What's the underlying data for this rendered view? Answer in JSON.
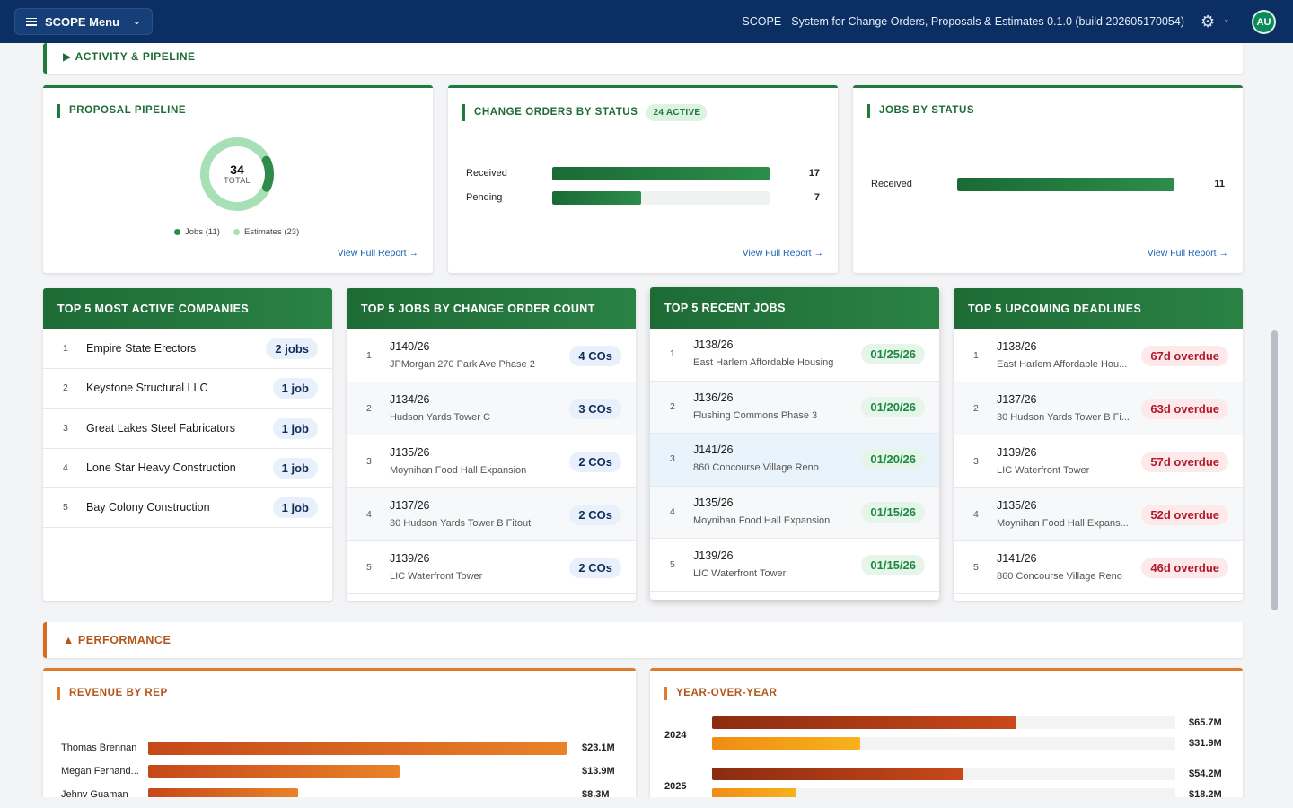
{
  "header": {
    "menu_label": "SCOPE Menu",
    "app_title": "SCOPE - System for Change Orders, Proposals & Estimates 0.1.0 (build 202605170054)",
    "avatar_initials": "AU"
  },
  "sections": {
    "activity": "ACTIVITY & PIPELINE",
    "performance": "PERFORMANCE"
  },
  "proposal_pipeline": {
    "title": "PROPOSAL PIPELINE",
    "total": "34",
    "total_label": "TOTAL",
    "legend_jobs": "Jobs (11)",
    "legend_estimates": "Estimates (23)",
    "jobs": 11,
    "estimates": 23,
    "view_link": "View Full Report →",
    "colors": {
      "jobs": "#2e8b4a",
      "estimates": "#a7dfb7"
    }
  },
  "change_orders": {
    "title": "CHANGE ORDERS BY STATUS",
    "badge": "24 ACTIVE",
    "rows": [
      {
        "label": "Received",
        "value": "17",
        "fraction": 1.0
      },
      {
        "label": "Pending",
        "value": "7",
        "fraction": 0.41
      }
    ],
    "view_link": "View Full Report →"
  },
  "jobs_status": {
    "title": "JOBS BY STATUS",
    "rows": [
      {
        "label": "Received",
        "value": "11",
        "fraction": 1.0
      }
    ],
    "view_link": "View Full Report →"
  },
  "top_companies": {
    "title": "TOP 5 MOST ACTIVE COMPANIES",
    "rows": [
      {
        "rank": "1",
        "name": "Empire State Erectors",
        "pill": "2 jobs"
      },
      {
        "rank": "2",
        "name": "Keystone Structural LLC",
        "pill": "1 job"
      },
      {
        "rank": "3",
        "name": "Great Lakes Steel Fabricators",
        "pill": "1 job"
      },
      {
        "rank": "4",
        "name": "Lone Star Heavy Construction",
        "pill": "1 job"
      },
      {
        "rank": "5",
        "name": "Bay Colony Construction",
        "pill": "1 job"
      }
    ]
  },
  "top_jobs_co": {
    "title": "TOP 5 JOBS BY CHANGE ORDER COUNT",
    "rows": [
      {
        "rank": "1",
        "job": "J140/26",
        "name": "JPMorgan 270 Park Ave Phase 2",
        "pill": "4 COs"
      },
      {
        "rank": "2",
        "job": "J134/26",
        "name": "Hudson Yards Tower C",
        "pill": "3 COs"
      },
      {
        "rank": "3",
        "job": "J135/26",
        "name": "Moynihan Food Hall Expansion",
        "pill": "2 COs"
      },
      {
        "rank": "4",
        "job": "J137/26",
        "name": "30 Hudson Yards Tower B Fitout",
        "pill": "2 COs"
      },
      {
        "rank": "5",
        "job": "J139/26",
        "name": "LIC Waterfront Tower",
        "pill": "2 COs"
      }
    ]
  },
  "recent_jobs": {
    "title": "TOP 5 RECENT JOBS",
    "rows": [
      {
        "rank": "1",
        "job": "J138/26",
        "name": "East Harlem Affordable Housing",
        "pill": "01/25/26"
      },
      {
        "rank": "2",
        "job": "J136/26",
        "name": "Flushing Commons Phase 3",
        "pill": "01/20/26"
      },
      {
        "rank": "3",
        "job": "J141/26",
        "name": "860 Concourse Village Reno",
        "pill": "01/20/26"
      },
      {
        "rank": "4",
        "job": "J135/26",
        "name": "Moynihan Food Hall Expansion",
        "pill": "01/15/26"
      },
      {
        "rank": "5",
        "job": "J139/26",
        "name": "LIC Waterfront Tower",
        "pill": "01/15/26"
      }
    ]
  },
  "deadlines": {
    "title": "TOP 5 UPCOMING DEADLINES",
    "rows": [
      {
        "rank": "1",
        "job": "J138/26",
        "name": "East Harlem Affordable Hou...",
        "pill": "67d overdue"
      },
      {
        "rank": "2",
        "job": "J137/26",
        "name": "30 Hudson Yards Tower B Fi...",
        "pill": "63d overdue"
      },
      {
        "rank": "3",
        "job": "J139/26",
        "name": "LIC Waterfront Tower",
        "pill": "57d overdue"
      },
      {
        "rank": "4",
        "job": "J135/26",
        "name": "Moynihan Food Hall Expans...",
        "pill": "52d overdue"
      },
      {
        "rank": "5",
        "job": "J141/26",
        "name": "860 Concourse Village Reno",
        "pill": "46d overdue"
      }
    ]
  },
  "revenue_by_rep": {
    "title": "REVENUE BY REP",
    "rows": [
      {
        "name": "Thomas Brennan",
        "value": "$23.1M",
        "amount": 23.1
      },
      {
        "name": "Megan Fernand...",
        "value": "$13.9M",
        "amount": 13.9
      },
      {
        "name": "Jehny Guaman",
        "value": "$8.3M",
        "amount": 8.3
      }
    ]
  },
  "yoy": {
    "title": "YEAR-OVER-YEAR",
    "groups": [
      {
        "year": "2024",
        "a_value": "$65.7M",
        "a_amount": 65.7,
        "b_value": "$31.9M",
        "b_amount": 31.9
      },
      {
        "year": "2025",
        "a_value": "$54.2M",
        "a_amount": 54.2,
        "b_value": "$18.2M",
        "b_amount": 18.2
      }
    ]
  }
}
